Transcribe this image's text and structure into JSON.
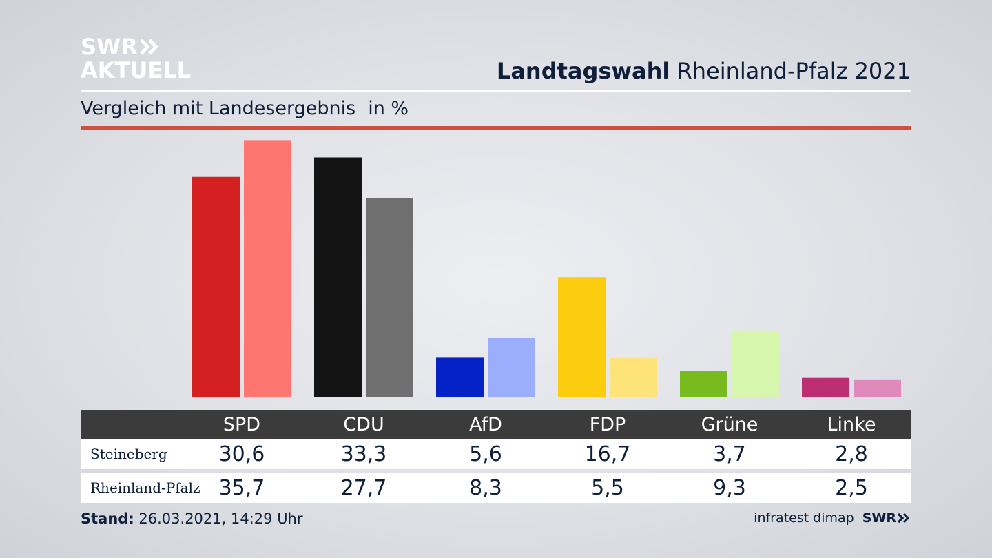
{
  "brand": {
    "logo_line1": "SWR",
    "logo_line2": "AKTUELL",
    "logo_icon": "double-chevron-icon"
  },
  "header": {
    "title_bold": "Landtagswahl",
    "title_rest": "Rheinland-Pfalz 2021",
    "subtitle": "Vergleich mit Landesergebnis",
    "unit": "in %"
  },
  "colors": {
    "background": "#dfe1e6",
    "accent_rule": "#d0503f",
    "table_header": "#3b3b3b",
    "text": "#0f1f3a"
  },
  "chart_data": {
    "type": "bar",
    "categories": [
      "SPD",
      "CDU",
      "AfD",
      "FDP",
      "Grüne",
      "Linke"
    ],
    "series": [
      {
        "name": "Steineberg",
        "values": [
          30.6,
          33.3,
          5.6,
          16.7,
          3.7,
          2.8
        ],
        "colors": [
          "#d42020",
          "#141414",
          "#0422c6",
          "#fccd0e",
          "#78bb1e",
          "#bb2f72"
        ]
      },
      {
        "name": "Rheinland-Pfalz",
        "values": [
          35.7,
          27.7,
          8.3,
          5.5,
          9.3,
          2.5
        ],
        "colors": [
          "#ff7570",
          "#706f6f",
          "#9badfd",
          "#fde378",
          "#d7f6ad",
          "#e089bb"
        ]
      }
    ],
    "ylim": [
      0,
      36.5
    ],
    "grid": false,
    "legend": "table below chart"
  },
  "table": {
    "headers": [
      "SPD",
      "CDU",
      "AfD",
      "FDP",
      "Grüne",
      "Linke"
    ],
    "rows": [
      {
        "label": "Steineberg",
        "values": [
          "30,6",
          "33,3",
          "5,6",
          "16,7",
          "3,7",
          "2,8"
        ]
      },
      {
        "label": "Rheinland-Pfalz",
        "values": [
          "35,7",
          "27,7",
          "8,3",
          "5,5",
          "9,3",
          "2,5"
        ]
      }
    ]
  },
  "footer": {
    "stand_label": "Stand:",
    "stand_value": "26.03.2021, 14:29 Uhr",
    "source": "infratest dimap",
    "source_brand": "SWR",
    "source_icon": "double-chevron-icon"
  }
}
